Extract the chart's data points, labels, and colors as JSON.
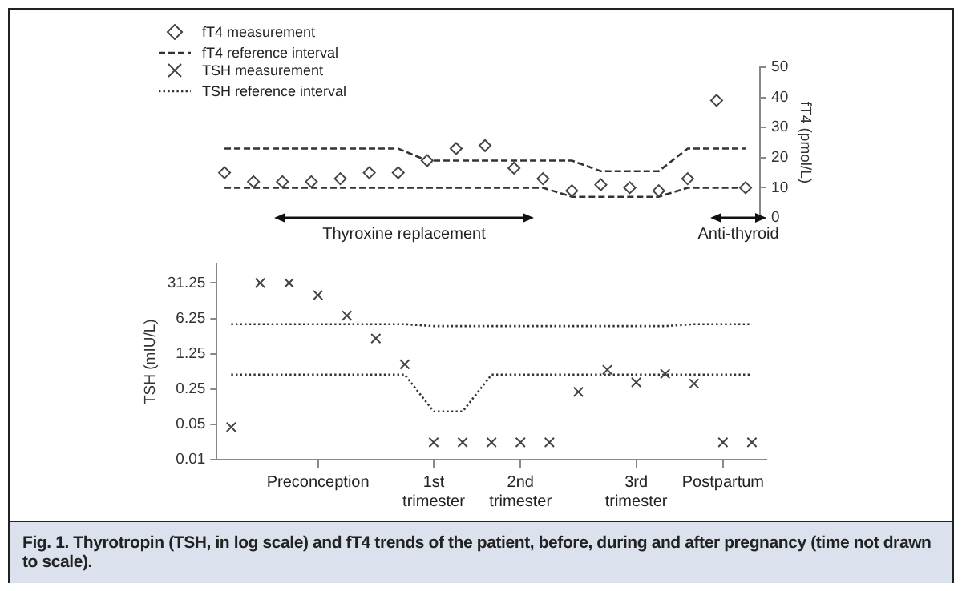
{
  "chart_data": [
    {
      "type": "scatter",
      "categories": [
        null,
        null,
        null,
        null,
        null,
        null,
        null,
        null,
        null,
        null,
        null,
        null,
        null,
        null,
        null,
        null,
        null,
        null,
        null
      ],
      "tick_labels": "y",
      "y2label": "fT4 (pmol/L)",
      "y2lim": [
        0,
        50
      ],
      "y2ticks": [
        0,
        10,
        20,
        30,
        40,
        50
      ],
      "grid": false,
      "legend": "top left",
      "series": [
        {
          "name": "fT4 measurement",
          "type": "scatter",
          "axis": "y2",
          "marker": "diamond",
          "color": "#444444",
          "values": [
            15,
            12,
            12,
            12,
            13,
            15,
            15,
            19,
            23,
            24,
            16.5,
            13,
            9,
            11,
            10,
            9,
            13,
            39,
            10
          ]
        },
        {
          "name": "fT4 reference interval",
          "type": "line",
          "axis": "y2",
          "marker": "none",
          "line_style": "dashed",
          "color": "#333333",
          "values": [
            23,
            23,
            23,
            23,
            23,
            23,
            23,
            19,
            19,
            19,
            19,
            19,
            19,
            15.5,
            15.5,
            15.5,
            23,
            23,
            23
          ]
        },
        {
          "type": "line",
          "axis": "y2",
          "marker": "none",
          "line_style": "dashed",
          "color": "#333333",
          "values": [
            10,
            10,
            10,
            10,
            10,
            10,
            10,
            10,
            10,
            10,
            10,
            10,
            7,
            7,
            7,
            7,
            10,
            10,
            10
          ]
        }
      ],
      "annotations": [
        "Thyroxine replacement",
        "Anti-thyroid"
      ]
    },
    {
      "type": "scatter",
      "categories": [
        null,
        null,
        null,
        "Preconception",
        null,
        null,
        null,
        "1st trimester",
        null,
        null,
        "2nd trimester",
        null,
        null,
        null,
        "3rd trimester",
        null,
        null,
        "Postpartum",
        null
      ],
      "ylabel": "TSH (mIU/L)",
      "log": "y",
      "ylim": [
        0.01,
        75
      ],
      "yticks": [
        0.01,
        0.05,
        0.25,
        1.25,
        6.25,
        31.25
      ],
      "grid": false,
      "legend": "top left",
      "series": [
        {
          "name": "TSH measurement",
          "type": "scatter",
          "marker": "cross",
          "color": "#444444",
          "values": [
            0.044,
            31.25,
            31.25,
            18,
            7.1,
            2.5,
            0.77,
            0.022,
            0.022,
            0.022,
            0.022,
            0.022,
            0.22,
            0.6,
            0.34,
            0.5,
            0.32,
            0.022,
            0.022
          ]
        },
        {
          "name": "TSH reference interval",
          "type": "line",
          "marker": "none",
          "line_style": "dotted",
          "color": "#333333",
          "values": [
            4.8,
            4.8,
            4.8,
            4.8,
            4.8,
            4.8,
            4.8,
            4.4,
            4.4,
            4.4,
            4.4,
            4.4,
            4.4,
            4.4,
            4.4,
            4.4,
            4.8,
            4.8,
            4.8
          ]
        },
        {
          "type": "line",
          "marker": "none",
          "line_style": "dotted",
          "color": "#333333",
          "values": [
            0.48,
            0.48,
            0.48,
            0.48,
            0.48,
            0.48,
            0.48,
            0.09,
            0.09,
            0.48,
            0.48,
            0.48,
            0.48,
            0.48,
            0.48,
            0.48,
            0.48,
            0.48,
            0.48
          ]
        }
      ],
      "annotations": [
        "Fig. 1.  Thyrotropin (TSH, in log scale) and fT4 trends of the patient, before, during and after pregnancy (time not drawn to scale)."
      ]
    }
  ]
}
